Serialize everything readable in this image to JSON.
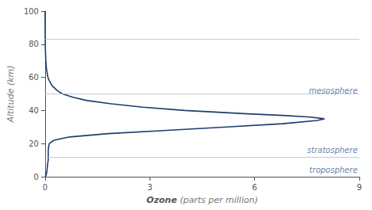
{
  "chart_data": {
    "type": "line",
    "xlabel": "Ozone (parts per million)",
    "ylabel": "Altitude (km)",
    "x": [
      0,
      0.01,
      0.02,
      0.03,
      0.04,
      0.05,
      0.06,
      0.07,
      0.08,
      0.09,
      0.09,
      0.09,
      0.09,
      0.09,
      0.1,
      0.12,
      0.25,
      0.7,
      1.8,
      3.5,
      5.2,
      6.8,
      7.8,
      8.0,
      7.6,
      6.8,
      5.8,
      4.0,
      2.8,
      1.9,
      1.2,
      0.8,
      0.5,
      0.35,
      0.2,
      0.12,
      0.08,
      0.04,
      0.02,
      0.01,
      0.005,
      0.002,
      0.001,
      0.0005,
      0.0002
    ],
    "values": [
      0,
      0.2,
      0.5,
      1,
      2,
      3,
      5,
      7,
      9,
      10,
      11,
      12,
      14,
      16,
      18,
      20,
      22,
      24,
      26,
      28,
      30,
      32,
      34,
      35,
      36,
      37,
      38,
      40,
      42,
      44,
      46,
      48,
      50,
      52,
      55,
      58,
      60,
      65,
      70,
      75,
      80,
      85,
      90,
      95,
      100
    ],
    "color": "#1e3d6e",
    "xlim": [
      0,
      9
    ],
    "xticks": [
      0,
      3,
      6,
      9
    ],
    "ylim": [
      0,
      100
    ],
    "yticks": [
      0,
      20,
      40,
      60,
      80,
      100
    ],
    "grid": false,
    "hlines": [
      12,
      50,
      83
    ],
    "hline_color": "#a8c0d6",
    "annotations": [
      {
        "text": "mesosphere",
        "x": 8.95,
        "y": 52,
        "color": "#3a6090"
      },
      {
        "text": "stratosphere",
        "x": 8.95,
        "y": 16,
        "color": "#3a6090"
      },
      {
        "text": "troposphere",
        "x": 8.95,
        "y": 4,
        "color": "#3a6090"
      }
    ]
  }
}
